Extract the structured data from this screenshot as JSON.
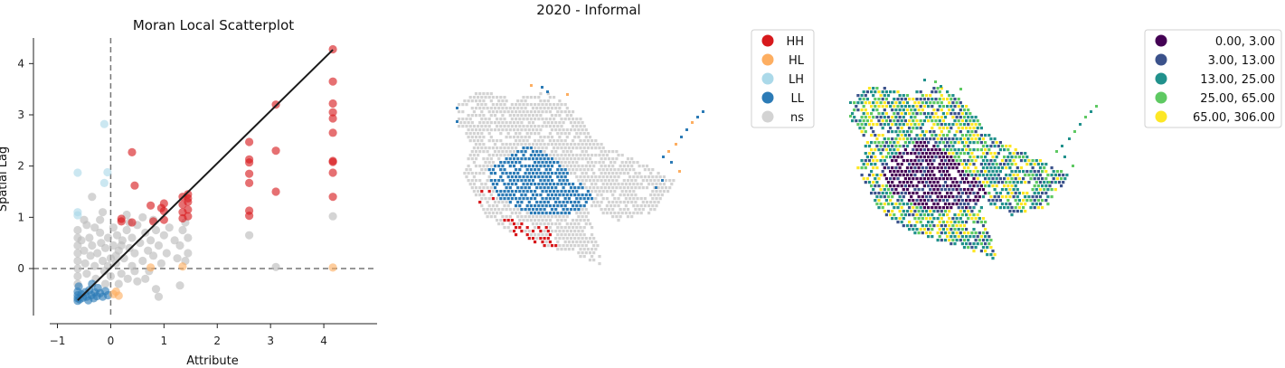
{
  "figure": {
    "suptitle": "2020 - Informal"
  },
  "chart_data": [
    {
      "type": "scatter",
      "title": "Moran Local Scatterplot",
      "xlabel": "Attribute",
      "ylabel": "Spatial Lag",
      "xlim": [
        -1.45,
        5.0
      ],
      "ylim": [
        -0.9,
        4.5
      ],
      "xticks": [
        -1,
        0,
        1,
        2,
        3,
        4
      ],
      "xtick_labels": [
        "−1",
        "0",
        "1",
        "2",
        "3",
        "4"
      ],
      "yticks": [
        0,
        1,
        2,
        3,
        4
      ],
      "ytick_labels": [
        "0",
        "1",
        "2",
        "3",
        "4"
      ],
      "reference_lines": {
        "x": 0,
        "y": 0,
        "style": "dashed"
      },
      "regression_line": {
        "x": [
          -0.62,
          4.17
        ],
        "y": [
          -0.62,
          4.27
        ]
      },
      "colors": {
        "HH": "#d7191c",
        "HL": "#fdae61",
        "LH": "#abd9e9",
        "LL": "#2c7bb6",
        "ns": "#bababa",
        "line": "#1a1a1a"
      },
      "series": [
        {
          "name": "HH",
          "points": [
            [
              4.17,
              4.28
            ],
            [
              4.17,
              3.65
            ],
            [
              4.17,
              3.22
            ],
            [
              4.17,
              3.05
            ],
            [
              4.17,
              2.93
            ],
            [
              4.17,
              2.65
            ],
            [
              4.17,
              2.1
            ],
            [
              4.17,
              2.08
            ],
            [
              4.17,
              1.87
            ],
            [
              4.17,
              1.4
            ],
            [
              3.1,
              3.2
            ],
            [
              3.1,
              2.3
            ],
            [
              3.1,
              1.5
            ],
            [
              2.6,
              2.47
            ],
            [
              2.6,
              2.13
            ],
            [
              2.6,
              2.07
            ],
            [
              2.6,
              1.85
            ],
            [
              2.6,
              1.67
            ],
            [
              2.6,
              1.13
            ],
            [
              2.6,
              1.03
            ],
            [
              1.45,
              1.45
            ],
            [
              1.45,
              1.37
            ],
            [
              1.45,
              1.3
            ],
            [
              1.45,
              1.15
            ],
            [
              1.45,
              1.02
            ],
            [
              1.35,
              1.4
            ],
            [
              1.35,
              1.25
            ],
            [
              1.35,
              1.1
            ],
            [
              1.35,
              0.98
            ],
            [
              1.0,
              1.27
            ],
            [
              1.0,
              1.12
            ],
            [
              1.0,
              0.95
            ],
            [
              0.95,
              1.18
            ],
            [
              0.75,
              1.23
            ],
            [
              0.8,
              0.92
            ],
            [
              0.4,
              2.27
            ],
            [
              0.45,
              1.62
            ],
            [
              0.4,
              0.9
            ],
            [
              0.2,
              0.97
            ],
            [
              0.2,
              0.92
            ]
          ]
        },
        {
          "name": "HL",
          "points": [
            [
              4.17,
              0.02
            ],
            [
              1.35,
              0.04
            ],
            [
              0.75,
              0.02
            ],
            [
              0.1,
              -0.45
            ],
            [
              0.15,
              -0.53
            ],
            [
              0.05,
              -0.5
            ]
          ]
        },
        {
          "name": "LH",
          "points": [
            [
              -0.12,
              2.82
            ],
            [
              -0.62,
              1.87
            ],
            [
              -0.06,
              1.88
            ],
            [
              -0.12,
              1.67
            ],
            [
              -0.62,
              1.1
            ],
            [
              -0.62,
              1.04
            ]
          ]
        },
        {
          "name": "LL",
          "points": [
            [
              -0.62,
              -0.45
            ],
            [
              -0.62,
              -0.52
            ],
            [
              -0.62,
              -0.58
            ],
            [
              -0.62,
              -0.63
            ],
            [
              -0.58,
              -0.6
            ],
            [
              -0.55,
              -0.5
            ],
            [
              -0.52,
              -0.57
            ],
            [
              -0.48,
              -0.46
            ],
            [
              -0.45,
              -0.55
            ],
            [
              -0.42,
              -0.62
            ],
            [
              -0.4,
              -0.42
            ],
            [
              -0.36,
              -0.52
            ],
            [
              -0.32,
              -0.58
            ],
            [
              -0.3,
              -0.46
            ],
            [
              -0.26,
              -0.54
            ],
            [
              -0.24,
              -0.38
            ],
            [
              -0.2,
              -0.48
            ],
            [
              -0.15,
              -0.55
            ],
            [
              -0.1,
              -0.44
            ],
            [
              -0.05,
              -0.52
            ],
            [
              -0.35,
              -0.3
            ],
            [
              -0.6,
              -0.35
            ]
          ]
        },
        {
          "name": "ns",
          "points": [
            [
              4.17,
              1.02
            ],
            [
              2.6,
              0.65
            ],
            [
              3.1,
              0.03
            ],
            [
              1.3,
              -0.33
            ],
            [
              0.9,
              -0.55
            ],
            [
              0.85,
              -0.4
            ],
            [
              -0.35,
              1.4
            ],
            [
              -0.15,
              1.1
            ],
            [
              -0.5,
              0.95
            ],
            [
              -0.3,
              0.8
            ],
            [
              -0.62,
              0.75
            ],
            [
              -0.62,
              0.6
            ],
            [
              -0.62,
              0.45
            ],
            [
              -0.62,
              0.3
            ],
            [
              -0.62,
              0.15
            ],
            [
              -0.62,
              0.0
            ],
            [
              -0.62,
              -0.15
            ],
            [
              -0.62,
              -0.3
            ],
            [
              -0.55,
              0.55
            ],
            [
              -0.5,
              0.35
            ],
            [
              -0.48,
              0.1
            ],
            [
              -0.45,
              -0.1
            ],
            [
              -0.4,
              0.6
            ],
            [
              -0.38,
              0.25
            ],
            [
              -0.35,
              0.45
            ],
            [
              -0.3,
              0.05
            ],
            [
              -0.28,
              -0.2
            ],
            [
              -0.25,
              0.3
            ],
            [
              -0.2,
              0.7
            ],
            [
              -0.18,
              0.5
            ],
            [
              -0.15,
              0.15
            ],
            [
              -0.12,
              -0.05
            ],
            [
              -0.1,
              0.4
            ],
            [
              -0.05,
              0.6
            ],
            [
              0.0,
              0.2
            ],
            [
              0.0,
              -0.15
            ],
            [
              0.05,
              0.45
            ],
            [
              0.05,
              0.8
            ],
            [
              0.1,
              0.1
            ],
            [
              0.12,
              0.65
            ],
            [
              0.15,
              0.35
            ],
            [
              0.2,
              -0.1
            ],
            [
              0.22,
              0.55
            ],
            [
              0.25,
              0.2
            ],
            [
              0.3,
              0.75
            ],
            [
              0.32,
              -0.2
            ],
            [
              0.35,
              0.4
            ],
            [
              0.4,
              0.05
            ],
            [
              0.4,
              0.6
            ],
            [
              0.45,
              0.3
            ],
            [
              0.5,
              -0.25
            ],
            [
              0.5,
              0.85
            ],
            [
              0.55,
              0.5
            ],
            [
              0.6,
              0.15
            ],
            [
              0.65,
              0.7
            ],
            [
              0.7,
              0.35
            ],
            [
              0.72,
              -0.05
            ],
            [
              0.75,
              0.55
            ],
            [
              0.8,
              0.25
            ],
            [
              0.85,
              0.75
            ],
            [
              0.9,
              0.45
            ],
            [
              0.95,
              0.1
            ],
            [
              1.0,
              0.65
            ],
            [
              1.05,
              0.3
            ],
            [
              1.1,
              0.8
            ],
            [
              1.2,
              0.55
            ],
            [
              1.25,
              0.2
            ],
            [
              1.3,
              0.45
            ],
            [
              1.35,
              0.75
            ],
            [
              1.4,
              0.9
            ],
            [
              1.45,
              0.6
            ],
            [
              1.45,
              0.3
            ],
            [
              1.4,
              0.15
            ],
            [
              -0.45,
              0.85
            ],
            [
              -0.2,
              0.95
            ],
            [
              0.6,
              1.0
            ],
            [
              0.3,
              1.05
            ],
            [
              0.1,
              0.25
            ],
            [
              -0.05,
              0.05
            ],
            [
              0.2,
              0.45
            ],
            [
              0.45,
              -0.05
            ],
            [
              0.65,
              -0.2
            ],
            [
              0.15,
              -0.3
            ],
            [
              -0.1,
              -0.3
            ],
            [
              0.35,
              0.9
            ],
            [
              0.8,
              0.95
            ]
          ]
        }
      ]
    },
    {
      "type": "map",
      "title": "",
      "legend": {
        "placement": "upper right",
        "entries": [
          {
            "label": "HH",
            "color": "#d7191c"
          },
          {
            "label": "HL",
            "color": "#fdae61"
          },
          {
            "label": "LH",
            "color": "#abd9e9"
          },
          {
            "label": "LL",
            "color": "#2c7bb6"
          },
          {
            "label": "ns",
            "color": "#d3d3d3"
          }
        ]
      }
    },
    {
      "type": "map",
      "title": "",
      "legend": {
        "placement": "upper right",
        "entries": [
          {
            "label": "0.00,   3.00",
            "color": "#440154"
          },
          {
            "label": "3.00,  13.00",
            "color": "#3b528b"
          },
          {
            "label": "13.00,  25.00",
            "color": "#21918c"
          },
          {
            "label": "25.00,  65.00",
            "color": "#5ec962"
          },
          {
            "label": "65.00, 306.00",
            "color": "#fde725"
          }
        ]
      }
    }
  ]
}
